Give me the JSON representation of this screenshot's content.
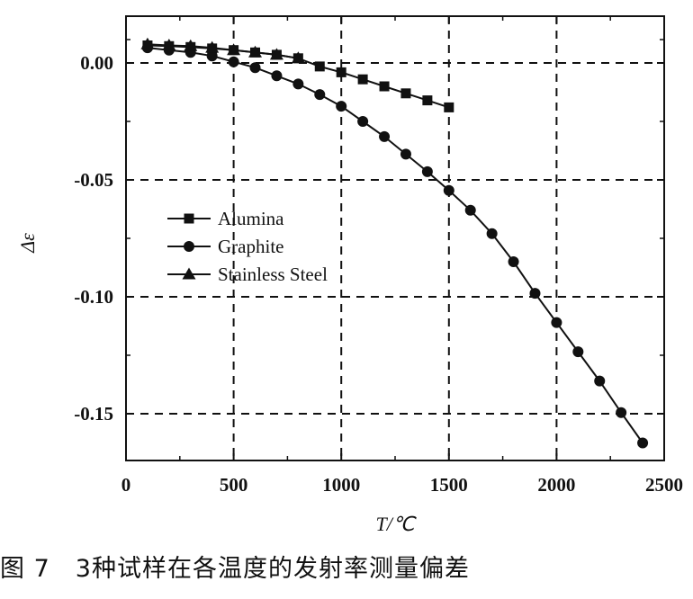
{
  "chart_data": {
    "type": "line",
    "title": "",
    "xlabel": "T/℃",
    "ylabel": "Δε",
    "xlim": [
      0,
      2500
    ],
    "ylim": [
      -0.17,
      0.02
    ],
    "xticks": [
      0,
      500,
      1000,
      1500,
      2000,
      2500
    ],
    "xtick_labels": [
      "0",
      "500",
      "1000",
      "1500",
      "2000",
      "2500"
    ],
    "yticks": [
      0.0,
      -0.05,
      -0.1,
      -0.15
    ],
    "ytick_labels": [
      "0.00",
      "-0.05",
      "-0.10",
      "-0.15"
    ],
    "grid": true,
    "legend_position": "middle-left",
    "series": [
      {
        "name": "Alumina",
        "marker": "square",
        "x": [
          100,
          200,
          300,
          400,
          500,
          600,
          700,
          800,
          900,
          1000,
          1100,
          1200,
          1300,
          1400,
          1500
        ],
        "y": [
          0.0075,
          0.0072,
          0.0068,
          0.0062,
          0.0055,
          0.0045,
          0.0035,
          0.002,
          -0.0015,
          -0.004,
          -0.007,
          -0.01,
          -0.013,
          -0.016,
          -0.019
        ]
      },
      {
        "name": "Graphite",
        "marker": "circle",
        "x": [
          100,
          200,
          300,
          400,
          500,
          600,
          700,
          800,
          900,
          1000,
          1100,
          1200,
          1300,
          1400,
          1500,
          1600,
          1700,
          1800,
          1900,
          2000,
          2100,
          2200,
          2300,
          2400
        ],
        "y": [
          0.0065,
          0.0055,
          0.0045,
          0.003,
          0.0005,
          -0.002,
          -0.0055,
          -0.009,
          -0.0135,
          -0.0185,
          -0.025,
          -0.0315,
          -0.039,
          -0.0465,
          -0.0545,
          -0.063,
          -0.073,
          -0.085,
          -0.0985,
          -0.111,
          -0.1235,
          -0.136,
          -0.1495,
          -0.1625
        ]
      },
      {
        "name": "Stainless Steel",
        "marker": "triangle",
        "x": [
          100,
          200,
          300,
          400,
          500,
          600,
          700,
          800
        ],
        "y": [
          0.008,
          0.0075,
          0.0072,
          0.0065,
          0.0055,
          0.0045,
          0.0035,
          0.002
        ]
      }
    ]
  },
  "caption": "图 7　3种试样在各温度的发射率测量偏差",
  "colors": {
    "ink": "#111111",
    "background": "#ffffff"
  }
}
